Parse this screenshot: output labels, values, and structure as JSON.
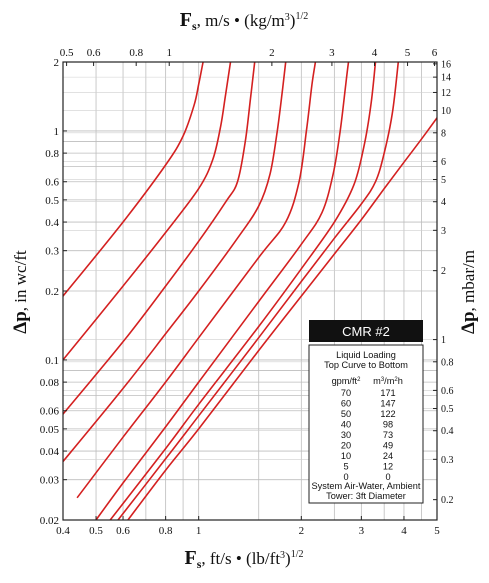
{
  "chart_data": {
    "type": "line",
    "title": "",
    "x_bottom": {
      "label_symbol": "F",
      "label_sub": "s",
      "label_rest": ", ft/s • (lb/ft",
      "label_sup": "3",
      "label_end": ")",
      "label_exp": "1/2",
      "scale": "log",
      "range": [
        0.4,
        5
      ],
      "ticks": [
        0.4,
        0.5,
        0.6,
        0.8,
        1,
        2,
        3,
        4,
        5
      ],
      "tick_labels": [
        "0.4",
        "0.5",
        "0.6",
        "0.8",
        "1",
        "2",
        "3",
        "4",
        "5"
      ]
    },
    "x_top": {
      "label_symbol": "F",
      "label_sub": "s",
      "label_rest": ", m/s • (kg/m",
      "label_sup": "3",
      "label_end": ")",
      "label_exp": "1/2",
      "scale": "log",
      "range": [
        0.488,
        6.1
      ],
      "ticks": [
        0.5,
        0.6,
        0.8,
        1,
        2,
        3,
        4,
        5,
        6
      ],
      "tick_labels": [
        "0.5",
        "0.6",
        "0.8",
        "1",
        "2",
        "3",
        "4",
        "5",
        "6"
      ]
    },
    "y_left": {
      "label_symbol": "Δp",
      "label_rest": ", in wc/ft",
      "scale": "log",
      "range": [
        0.02,
        2
      ],
      "ticks": [
        0.02,
        0.03,
        0.04,
        0.05,
        0.06,
        0.08,
        0.1,
        0.2,
        0.3,
        0.4,
        0.5,
        0.6,
        0.8,
        1,
        2
      ],
      "tick_labels": [
        "0.02",
        "0.03",
        "0.04",
        "0.05",
        "0.06",
        "0.08",
        "0.1",
        "0.2",
        "0.3",
        "0.4",
        "0.5",
        "0.6",
        "0.8",
        "1",
        "2"
      ]
    },
    "y_right": {
      "label_symbol": "Δp",
      "label_rest": ", mbar/m",
      "scale": "log",
      "range": [
        0.163,
        16.3
      ],
      "ticks": [
        0.2,
        0.3,
        0.4,
        0.5,
        0.6,
        0.8,
        1,
        2,
        3,
        4,
        5,
        6,
        8,
        10,
        12,
        14,
        16
      ],
      "tick_labels": [
        "0.2",
        "0.3",
        "0.4",
        "0.5",
        "0.6",
        "0.8",
        "1",
        "2",
        "3",
        "4",
        "5",
        "6",
        "8",
        "10",
        "12",
        "14",
        "16"
      ]
    },
    "grid": true,
    "legend": {
      "position": "bottom-right",
      "title": "CMR #2",
      "line1": "Liquid Loading",
      "line2": "Top Curve to Bottom",
      "col1_head": "gpm/ft",
      "col1_head_sup": "2",
      "col2_head": "m",
      "col2_head_sup1": "3",
      "col2_head_mid": "/m",
      "col2_head_sup2": "2",
      "col2_head_end": "h",
      "rows": [
        [
          "70",
          "171"
        ],
        [
          "60",
          "147"
        ],
        [
          "50",
          "122"
        ],
        [
          "40",
          "98"
        ],
        [
          "30",
          "73"
        ],
        [
          "20",
          "49"
        ],
        [
          "10",
          "24"
        ],
        [
          "5",
          "12"
        ],
        [
          "0",
          "0"
        ]
      ],
      "footer1": "System Air-Water, Ambient",
      "footer2": "Tower: 3ft Diameter"
    },
    "line_color": "#d42020",
    "series": [
      {
        "loading_gpm_ft2": 70,
        "points": [
          [
            0.4,
            0.19
          ],
          [
            0.6,
            0.4
          ],
          [
            0.8,
            0.71
          ],
          [
            0.9,
            0.95
          ],
          [
            0.97,
            1.3
          ],
          [
            1.0,
            1.6
          ],
          [
            1.03,
            2.0
          ]
        ]
      },
      {
        "loading_gpm_ft2": 60,
        "points": [
          [
            0.4,
            0.1
          ],
          [
            0.6,
            0.21
          ],
          [
            0.8,
            0.36
          ],
          [
            1.0,
            0.56
          ],
          [
            1.1,
            0.75
          ],
          [
            1.16,
            1.05
          ],
          [
            1.2,
            1.45
          ],
          [
            1.24,
            2.0
          ]
        ]
      },
      {
        "loading_gpm_ft2": 50,
        "points": [
          [
            0.4,
            0.058
          ],
          [
            0.6,
            0.12
          ],
          [
            0.8,
            0.21
          ],
          [
            1.0,
            0.33
          ],
          [
            1.2,
            0.49
          ],
          [
            1.3,
            0.6
          ],
          [
            1.37,
            0.9
          ],
          [
            1.42,
            1.4
          ],
          [
            1.46,
            2.0
          ]
        ]
      },
      {
        "loading_gpm_ft2": 40,
        "points": [
          [
            0.4,
            0.036
          ],
          [
            0.6,
            0.075
          ],
          [
            0.8,
            0.13
          ],
          [
            1.0,
            0.2
          ],
          [
            1.3,
            0.34
          ],
          [
            1.5,
            0.47
          ],
          [
            1.62,
            0.65
          ],
          [
            1.7,
            1.0
          ],
          [
            1.76,
            1.5
          ],
          [
            1.8,
            2.0
          ]
        ]
      },
      {
        "loading_gpm_ft2": 30,
        "points": [
          [
            0.44,
            0.025
          ],
          [
            0.6,
            0.046
          ],
          [
            0.8,
            0.08
          ],
          [
            1.0,
            0.125
          ],
          [
            1.5,
            0.28
          ],
          [
            1.8,
            0.4
          ],
          [
            1.97,
            0.6
          ],
          [
            2.07,
            1.0
          ],
          [
            2.15,
            1.6
          ],
          [
            2.2,
            2.0
          ]
        ]
      },
      {
        "loading_gpm_ft2": 20,
        "points": [
          [
            0.5,
            0.02
          ],
          [
            0.6,
            0.029
          ],
          [
            0.8,
            0.051
          ],
          [
            1.0,
            0.08
          ],
          [
            1.5,
            0.18
          ],
          [
            2.0,
            0.32
          ],
          [
            2.3,
            0.44
          ],
          [
            2.48,
            0.65
          ],
          [
            2.6,
            1.0
          ],
          [
            2.7,
            1.6
          ],
          [
            2.75,
            2.0
          ]
        ]
      },
      {
        "loading_gpm_ft2": 10,
        "points": [
          [
            0.55,
            0.02
          ],
          [
            0.8,
            0.041
          ],
          [
            1.0,
            0.064
          ],
          [
            1.5,
            0.14
          ],
          [
            2.0,
            0.25
          ],
          [
            2.5,
            0.4
          ],
          [
            2.85,
            0.58
          ],
          [
            3.05,
            0.85
          ],
          [
            3.2,
            1.3
          ],
          [
            3.3,
            2.0
          ]
        ]
      },
      {
        "loading_gpm_ft2": 5,
        "points": [
          [
            0.58,
            0.02
          ],
          [
            0.8,
            0.037
          ],
          [
            1.0,
            0.057
          ],
          [
            1.5,
            0.125
          ],
          [
            2.0,
            0.22
          ],
          [
            2.5,
            0.34
          ],
          [
            3.0,
            0.48
          ],
          [
            3.3,
            0.6
          ],
          [
            3.5,
            0.8
          ],
          [
            3.7,
            1.2
          ],
          [
            3.85,
            2.0
          ]
        ]
      },
      {
        "loading_gpm_ft2": 0,
        "points": [
          [
            0.62,
            0.02
          ],
          [
            0.8,
            0.033
          ],
          [
            1.0,
            0.05
          ],
          [
            1.5,
            0.11
          ],
          [
            2.0,
            0.19
          ],
          [
            2.5,
            0.29
          ],
          [
            3.0,
            0.41
          ],
          [
            3.5,
            0.56
          ],
          [
            4.0,
            0.73
          ],
          [
            4.5,
            0.92
          ],
          [
            5.0,
            1.14
          ]
        ]
      }
    ]
  }
}
